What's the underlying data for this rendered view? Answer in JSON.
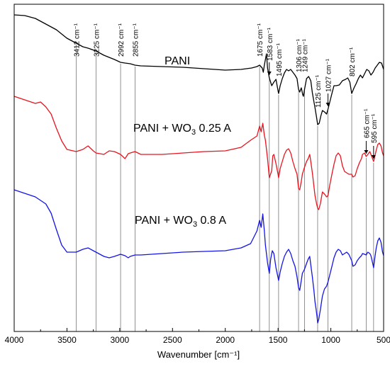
{
  "chart_data": {
    "type": "line",
    "title": "",
    "xlabel": "Wavenumber [cm⁻¹]",
    "ylabel": "",
    "xlim": [
      4000,
      500
    ],
    "x_reversed": true,
    "yaxis_visible": false,
    "grid": false,
    "legend": "none",
    "xticks": [
      4000,
      3500,
      3000,
      2500,
      2000,
      1500,
      1000,
      500
    ],
    "xtick_labels": [
      "4000",
      "3500",
      "3000",
      "2500",
      "2000",
      "1500",
      "1000",
      "500"
    ],
    "series_labels": [
      {
        "id": "pani",
        "prefix": "PANI",
        "sub": "",
        "suffix": ""
      },
      {
        "id": "wo3_025",
        "prefix": "PANI + WO",
        "sub": "3",
        "suffix": " 0.25 A"
      },
      {
        "id": "wo3_08",
        "prefix": "PANI + WO",
        "sub": "3",
        "suffix": " 0.8 A"
      }
    ],
    "series": [
      {
        "id": "pani",
        "color": "#000000",
        "points": [
          [
            4000,
            15
          ],
          [
            3900,
            16
          ],
          [
            3800,
            20
          ],
          [
            3700,
            28
          ],
          [
            3600,
            36
          ],
          [
            3500,
            48
          ],
          [
            3412,
            55
          ],
          [
            3350,
            60
          ],
          [
            3300,
            62
          ],
          [
            3225,
            66
          ],
          [
            3150,
            72
          ],
          [
            3050,
            78
          ],
          [
            2992,
            82
          ],
          [
            2950,
            83
          ],
          [
            2900,
            84
          ],
          [
            2855,
            86
          ],
          [
            2800,
            87
          ],
          [
            2600,
            88
          ],
          [
            2400,
            89
          ],
          [
            2200,
            91
          ],
          [
            2000,
            93
          ],
          [
            1850,
            92
          ],
          [
            1750,
            90
          ],
          [
            1700,
            88
          ],
          [
            1675,
            86
          ],
          [
            1650,
            90
          ],
          [
            1640,
            96
          ],
          [
            1630,
            86
          ],
          [
            1620,
            78
          ],
          [
            1610,
            70
          ],
          [
            1600,
            90
          ],
          [
            1583,
            104
          ],
          [
            1560,
            115
          ],
          [
            1540,
            110
          ],
          [
            1520,
            106
          ],
          [
            1500,
            122
          ],
          [
            1495,
            126
          ],
          [
            1480,
            115
          ],
          [
            1460,
            105
          ],
          [
            1440,
            97
          ],
          [
            1420,
            92
          ],
          [
            1400,
            94
          ],
          [
            1380,
            92
          ],
          [
            1340,
            100
          ],
          [
            1320,
            105
          ],
          [
            1306,
            120
          ],
          [
            1295,
            124
          ],
          [
            1280,
            118
          ],
          [
            1266,
            128
          ],
          [
            1260,
            130
          ],
          [
            1249,
            120
          ],
          [
            1230,
            105
          ],
          [
            1210,
            102
          ],
          [
            1190,
            108
          ],
          [
            1175,
            125
          ],
          [
            1150,
            146
          ],
          [
            1135,
            160
          ],
          [
            1125,
            170
          ],
          [
            1110,
            168
          ],
          [
            1095,
            158
          ],
          [
            1080,
            150
          ],
          [
            1060,
            152
          ],
          [
            1040,
            155
          ],
          [
            1027,
            148
          ],
          [
            1010,
            138
          ],
          [
            990,
            126
          ],
          [
            970,
            115
          ],
          [
            950,
            115
          ],
          [
            920,
            114
          ],
          [
            890,
            108
          ],
          [
            860,
            106
          ],
          [
            840,
            104
          ],
          [
            820,
            110
          ],
          [
            802,
            126
          ],
          [
            780,
            118
          ],
          [
            760,
            112
          ],
          [
            740,
            105
          ],
          [
            720,
            100
          ],
          [
            700,
            104
          ],
          [
            680,
            98
          ],
          [
            660,
            92
          ],
          [
            640,
            94
          ],
          [
            620,
            100
          ],
          [
            600,
            96
          ],
          [
            580,
            90
          ],
          [
            560,
            86
          ],
          [
            540,
            82
          ],
          [
            520,
            83
          ],
          [
            500,
            92
          ]
        ]
      },
      {
        "id": "wo3_025",
        "color": "#e8141e",
        "points": [
          [
            4000,
            130
          ],
          [
            3900,
            135
          ],
          [
            3800,
            140
          ],
          [
            3750,
            138
          ],
          [
            3700,
            145
          ],
          [
            3650,
            155
          ],
          [
            3600,
            175
          ],
          [
            3550,
            193
          ],
          [
            3500,
            205
          ],
          [
            3412,
            208
          ],
          [
            3350,
            205
          ],
          [
            3300,
            200
          ],
          [
            3250,
            207
          ],
          [
            3225,
            210
          ],
          [
            3150,
            212
          ],
          [
            3100,
            207
          ],
          [
            3050,
            208
          ],
          [
            2992,
            212
          ],
          [
            2950,
            218
          ],
          [
            2920,
            211
          ],
          [
            2900,
            210
          ],
          [
            2855,
            208
          ],
          [
            2800,
            212
          ],
          [
            2600,
            212
          ],
          [
            2400,
            210
          ],
          [
            2200,
            208
          ],
          [
            2000,
            207
          ],
          [
            1850,
            202
          ],
          [
            1760,
            192
          ],
          [
            1700,
            186
          ],
          [
            1675,
            172
          ],
          [
            1660,
            180
          ],
          [
            1645,
            168
          ],
          [
            1630,
            185
          ],
          [
            1620,
            192
          ],
          [
            1600,
            218
          ],
          [
            1583,
            245
          ],
          [
            1560,
            235
          ],
          [
            1550,
            214
          ],
          [
            1540,
            212
          ],
          [
            1520,
            225
          ],
          [
            1500,
            240
          ],
          [
            1495,
            245
          ],
          [
            1480,
            232
          ],
          [
            1460,
            222
          ],
          [
            1440,
            212
          ],
          [
            1420,
            206
          ],
          [
            1400,
            204
          ],
          [
            1380,
            210
          ],
          [
            1360,
            222
          ],
          [
            1340,
            232
          ],
          [
            1320,
            240
          ],
          [
            1306,
            260
          ],
          [
            1295,
            262
          ],
          [
            1280,
            250
          ],
          [
            1270,
            240
          ],
          [
            1249,
            230
          ],
          [
            1230,
            222
          ],
          [
            1215,
            218
          ],
          [
            1200,
            212
          ],
          [
            1190,
            222
          ],
          [
            1175,
            238
          ],
          [
            1150,
            270
          ],
          [
            1135,
            282
          ],
          [
            1125,
            288
          ],
          [
            1115,
            290
          ],
          [
            1100,
            282
          ],
          [
            1080,
            265
          ],
          [
            1060,
            268
          ],
          [
            1040,
            272
          ],
          [
            1027,
            270
          ],
          [
            1010,
            255
          ],
          [
            990,
            240
          ],
          [
            970,
            226
          ],
          [
            950,
            214
          ],
          [
            930,
            210
          ],
          [
            910,
            214
          ],
          [
            890,
            228
          ],
          [
            870,
            236
          ],
          [
            850,
            238
          ],
          [
            830,
            240
          ],
          [
            802,
            240
          ],
          [
            790,
            244
          ],
          [
            770,
            242
          ],
          [
            750,
            232
          ],
          [
            730,
            224
          ],
          [
            710,
            218
          ],
          [
            700,
            212
          ],
          [
            680,
            210
          ],
          [
            665,
            215
          ],
          [
            650,
            212
          ],
          [
            630,
            208
          ],
          [
            620,
            212
          ],
          [
            605,
            218
          ],
          [
            595,
            222
          ],
          [
            585,
            216
          ],
          [
            570,
            206
          ],
          [
            555,
            198
          ],
          [
            540,
            196
          ],
          [
            525,
            200
          ],
          [
            510,
            210
          ],
          [
            500,
            214
          ]
        ]
      },
      {
        "id": "wo3_08",
        "color": "#1414e6",
        "points": [
          [
            4000,
            262
          ],
          [
            3900,
            267
          ],
          [
            3800,
            272
          ],
          [
            3700,
            282
          ],
          [
            3650,
            295
          ],
          [
            3600,
            318
          ],
          [
            3550,
            340
          ],
          [
            3500,
            350
          ],
          [
            3412,
            350
          ],
          [
            3350,
            346
          ],
          [
            3300,
            344
          ],
          [
            3250,
            348
          ],
          [
            3225,
            350
          ],
          [
            3150,
            356
          ],
          [
            3100,
            358
          ],
          [
            3050,
            356
          ],
          [
            2992,
            353
          ],
          [
            2950,
            355
          ],
          [
            2920,
            358
          ],
          [
            2900,
            356
          ],
          [
            2855,
            354
          ],
          [
            2800,
            354
          ],
          [
            2600,
            352
          ],
          [
            2400,
            350
          ],
          [
            2200,
            349
          ],
          [
            2000,
            348
          ],
          [
            1850,
            344
          ],
          [
            1760,
            338
          ],
          [
            1700,
            320
          ],
          [
            1675,
            305
          ],
          [
            1660,
            315
          ],
          [
            1645,
            296
          ],
          [
            1630,
            320
          ],
          [
            1620,
            340
          ],
          [
            1600,
            365
          ],
          [
            1583,
            380
          ],
          [
            1570,
            360
          ],
          [
            1555,
            348
          ],
          [
            1540,
            352
          ],
          [
            1520,
            372
          ],
          [
            1500,
            386
          ],
          [
            1495,
            390
          ],
          [
            1480,
            378
          ],
          [
            1460,
            366
          ],
          [
            1440,
            356
          ],
          [
            1420,
            350
          ],
          [
            1400,
            346
          ],
          [
            1380,
            352
          ],
          [
            1360,
            362
          ],
          [
            1340,
            370
          ],
          [
            1320,
            385
          ],
          [
            1306,
            400
          ],
          [
            1295,
            404
          ],
          [
            1280,
            390
          ],
          [
            1270,
            380
          ],
          [
            1249,
            374
          ],
          [
            1230,
            366
          ],
          [
            1215,
            360
          ],
          [
            1200,
            356
          ],
          [
            1190,
            368
          ],
          [
            1175,
            385
          ],
          [
            1160,
            405
          ],
          [
            1150,
            420
          ],
          [
            1140,
            430
          ],
          [
            1130,
            442
          ],
          [
            1125,
            450
          ],
          [
            1115,
            445
          ],
          [
            1100,
            432
          ],
          [
            1080,
            412
          ],
          [
            1060,
            402
          ],
          [
            1040,
            398
          ],
          [
            1027,
            392
          ],
          [
            1010,
            382
          ],
          [
            990,
            370
          ],
          [
            970,
            358
          ],
          [
            950,
            350
          ],
          [
            930,
            346
          ],
          [
            910,
            348
          ],
          [
            890,
            354
          ],
          [
            870,
            352
          ],
          [
            850,
            350
          ],
          [
            830,
            353
          ],
          [
            802,
            362
          ],
          [
            790,
            370
          ],
          [
            770,
            368
          ],
          [
            750,
            362
          ],
          [
            730,
            358
          ],
          [
            710,
            355
          ],
          [
            700,
            352
          ],
          [
            680,
            353
          ],
          [
            665,
            354
          ],
          [
            650,
            350
          ],
          [
            630,
            352
          ],
          [
            620,
            355
          ],
          [
            605,
            365
          ],
          [
            595,
            372
          ],
          [
            585,
            360
          ],
          [
            570,
            344
          ],
          [
            555,
            334
          ],
          [
            540,
            330
          ],
          [
            525,
            336
          ],
          [
            510,
            350
          ],
          [
            500,
            355
          ]
        ]
      }
    ],
    "annotations": [
      {
        "wavenumber": 3412,
        "label": "3412 cm⁻¹",
        "arrow": false
      },
      {
        "wavenumber": 3225,
        "label": "3225 cm⁻¹",
        "arrow": false
      },
      {
        "wavenumber": 2992,
        "label": "2992 cm⁻¹",
        "arrow": false
      },
      {
        "wavenumber": 2855,
        "label": "2855 cm⁻¹",
        "arrow": false
      },
      {
        "wavenumber": 1675,
        "label": "1675 cm⁻¹",
        "arrow": false
      },
      {
        "wavenumber": 1583,
        "label": "1583 cm⁻¹",
        "arrow": true
      },
      {
        "wavenumber": 1495,
        "label": "1495 cm⁻¹",
        "arrow": false
      },
      {
        "wavenumber": 1306,
        "label": "1306 cm⁻¹",
        "arrow": false
      },
      {
        "wavenumber": 1249,
        "label": "1249 cm⁻¹",
        "arrow": false
      },
      {
        "wavenumber": 1125,
        "label": "1125 cm⁻¹",
        "arrow": false
      },
      {
        "wavenumber": 1027,
        "label": "1027 cm⁻¹",
        "arrow": true
      },
      {
        "wavenumber": 802,
        "label": "802 cm⁻¹",
        "arrow": false
      },
      {
        "wavenumber": 665,
        "label": "665 cm⁻¹",
        "arrow": true
      },
      {
        "wavenumber": 595,
        "label": "595 cm⁻¹",
        "arrow": true
      }
    ]
  }
}
